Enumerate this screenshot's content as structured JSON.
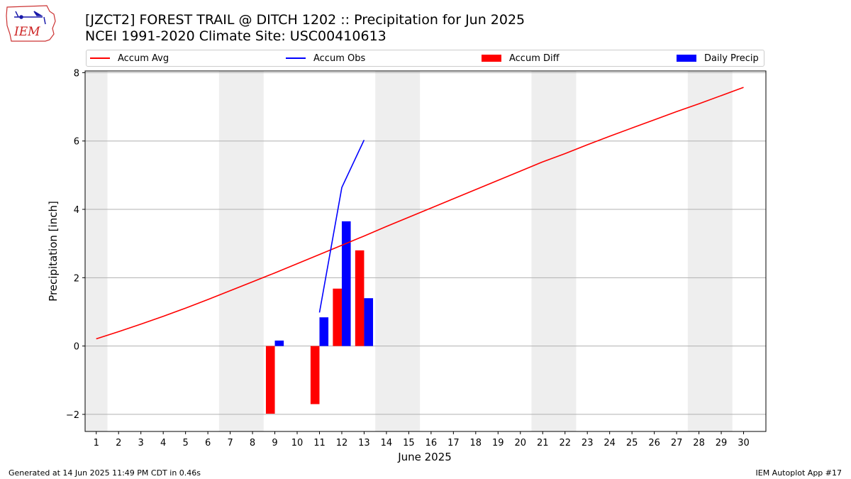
{
  "logo": {
    "text": "IEM"
  },
  "title": {
    "line1": "[JZCT2] FOREST TRAIL @ DITCH 1202 :: Precipitation for Jun 2025",
    "line2": "NCEI 1991-2020 Climate Site: USC00410613"
  },
  "footer": {
    "left": "Generated at 14 Jun 2025 11:49 PM CDT in 0.46s",
    "right": "IEM Autoplot App #17"
  },
  "legend": {
    "placement": "top",
    "items": [
      {
        "label": "Accum Avg",
        "kind": "line",
        "color": "#ff0000"
      },
      {
        "label": "Accum Obs",
        "kind": "line",
        "color": "#0000ff"
      },
      {
        "label": "Accum Diff",
        "kind": "patch",
        "color": "#ff0000"
      },
      {
        "label": "Daily Precip",
        "kind": "patch",
        "color": "#0000ff"
      }
    ]
  },
  "chart_data": {
    "type": "bar",
    "title": "[JZCT2] FOREST TRAIL @ DITCH 1202 :: Precipitation for Jun 2025",
    "subtitle": "NCEI 1991-2020 Climate Site: USC00410613",
    "xlabel": "June 2025",
    "ylabel": "Precipitation [inch]",
    "xlim": [
      0.5,
      31
    ],
    "ylim": [
      -2.5,
      8.05
    ],
    "xticks": [
      1,
      2,
      3,
      4,
      5,
      6,
      7,
      8,
      9,
      10,
      11,
      12,
      13,
      14,
      15,
      16,
      17,
      18,
      19,
      20,
      21,
      22,
      23,
      24,
      25,
      26,
      27,
      28,
      29,
      30
    ],
    "yticks": [
      -2,
      0,
      2,
      4,
      6,
      8
    ],
    "yticklabels": [
      "−2",
      "0",
      "2",
      "4",
      "6",
      "8"
    ],
    "grid": "horizontal",
    "weekend_shading": [
      [
        0.5,
        1.5
      ],
      [
        6.5,
        8.5
      ],
      [
        13.5,
        15.5
      ],
      [
        20.5,
        22.5
      ],
      [
        27.5,
        29.5
      ]
    ],
    "weekend_color": "#eeeeee",
    "series": [
      {
        "name": "Accum Avg",
        "kind": "line",
        "color": "#ff0000",
        "x": [
          1,
          2,
          3,
          4,
          5,
          6,
          7,
          8,
          9,
          10,
          11,
          12,
          13,
          14,
          15,
          16,
          17,
          18,
          19,
          20,
          21,
          22,
          23,
          24,
          25,
          26,
          27,
          28,
          29,
          30
        ],
        "values": [
          0.21,
          0.42,
          0.64,
          0.87,
          1.11,
          1.36,
          1.62,
          1.88,
          2.14,
          2.41,
          2.68,
          2.95,
          3.22,
          3.5,
          3.77,
          4.04,
          4.31,
          4.58,
          4.85,
          5.12,
          5.39,
          5.63,
          5.89,
          6.14,
          6.38,
          6.62,
          6.86,
          7.09,
          7.33,
          7.57
        ]
      },
      {
        "name": "Accum Obs",
        "kind": "line",
        "color": "#0000ff",
        "x": [
          11,
          12,
          13
        ],
        "values": [
          0.98,
          4.64,
          6.03
        ]
      },
      {
        "name": "Accum Diff",
        "kind": "bar",
        "color": "#ff0000",
        "x": [
          9,
          11,
          12,
          13
        ],
        "values": [
          -1.98,
          -1.7,
          1.68,
          2.8
        ]
      },
      {
        "name": "Daily Precip",
        "kind": "bar",
        "color": "#0000ff",
        "x": [
          9,
          11,
          12,
          13
        ],
        "values": [
          0.16,
          0.84,
          3.65,
          1.4
        ]
      }
    ]
  }
}
